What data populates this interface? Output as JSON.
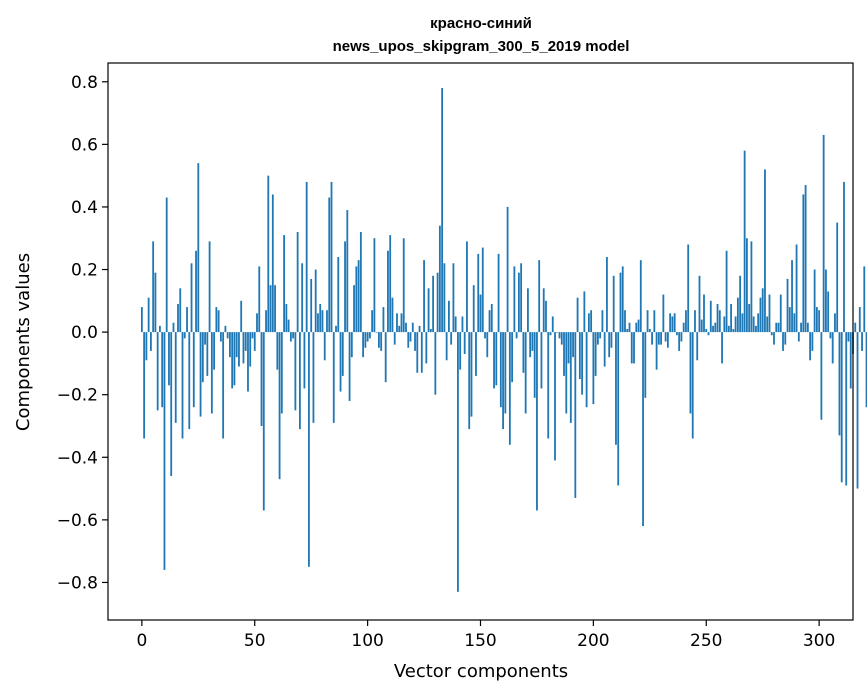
{
  "chart_data": {
    "type": "bar",
    "title": "красно-синий",
    "subtitle": "news_upos_skipgram_300_5_2019 model",
    "xlabel": "Vector components",
    "ylabel": "Components values",
    "xlim": [
      -15,
      315
    ],
    "ylim": [
      -0.92,
      0.86
    ],
    "xticks": [
      0,
      50,
      100,
      150,
      200,
      250,
      300
    ],
    "yticks": [
      -0.8,
      -0.6,
      -0.4,
      -0.2,
      0.0,
      0.2,
      0.4,
      0.6,
      0.8
    ],
    "bar_color": "#1f77b4",
    "grid": false,
    "series": [
      {
        "values": [
          0.08,
          -0.34,
          -0.09,
          0.11,
          -0.06,
          0.29,
          0.19,
          -0.25,
          0.02,
          -0.24,
          -0.76,
          0.43,
          -0.17,
          -0.46,
          0.03,
          -0.29,
          0.09,
          0.14,
          -0.34,
          -0.02,
          0.08,
          -0.31,
          0.22,
          -0.24,
          0.26,
          0.54,
          -0.27,
          -0.16,
          -0.04,
          -0.14,
          0.29,
          -0.26,
          -0.12,
          0.08,
          0.07,
          -0.03,
          -0.34,
          0.02,
          -0.02,
          -0.08,
          -0.18,
          -0.17,
          -0.08,
          -0.11,
          0.1,
          -0.1,
          -0.06,
          -0.19,
          -0.11,
          -0.02,
          -0.06,
          0.06,
          0.21,
          -0.3,
          -0.57,
          0.07,
          0.5,
          0.15,
          0.44,
          0.15,
          -0.12,
          -0.47,
          -0.26,
          0.31,
          0.09,
          0.04,
          -0.03,
          -0.02,
          -0.25,
          0.32,
          -0.31,
          0.22,
          -0.18,
          0.48,
          -0.75,
          0.17,
          -0.29,
          0.2,
          0.06,
          0.09,
          0.07,
          -0.09,
          0.07,
          0.43,
          0.48,
          -0.29,
          0.02,
          0.24,
          -0.19,
          -0.14,
          0.29,
          0.39,
          -0.22,
          -0.08,
          0.15,
          0.21,
          0.23,
          0.32,
          -0.08,
          -0.05,
          -0.03,
          -0.02,
          0.07,
          0.3,
          0.0,
          -0.05,
          -0.06,
          0.08,
          -0.16,
          0.26,
          0.31,
          0.11,
          -0.04,
          0.06,
          0.02,
          0.06,
          0.3,
          0.03,
          -0.05,
          -0.03,
          0.03,
          -0.06,
          -0.13,
          0.02,
          -0.13,
          0.23,
          -0.1,
          0.14,
          0.01,
          0.18,
          -0.2,
          0.19,
          0.34,
          0.78,
          0.22,
          -0.09,
          0.1,
          -0.04,
          0.22,
          0.05,
          -0.83,
          -0.12,
          0.05,
          -0.07,
          0.29,
          -0.31,
          -0.27,
          0.15,
          -0.14,
          0.25,
          0.12,
          0.27,
          -0.02,
          -0.08,
          0.07,
          0.09,
          -0.18,
          -0.17,
          0.25,
          -0.24,
          -0.31,
          -0.26,
          0.4,
          -0.36,
          -0.16,
          0.21,
          -0.02,
          0.19,
          0.22,
          -0.13,
          -0.26,
          0.14,
          -0.08,
          -0.06,
          -0.21,
          -0.57,
          0.23,
          -0.18,
          0.14,
          0.1,
          -0.34,
          -0.01,
          0.05,
          -0.41,
          0.0,
          -0.02,
          -0.04,
          -0.14,
          -0.26,
          -0.1,
          -0.29,
          -0.08,
          -0.53,
          0.11,
          -0.15,
          -0.2,
          0.13,
          -0.24,
          0.06,
          0.07,
          -0.23,
          -0.14,
          -0.04,
          -0.02,
          0.07,
          -0.11,
          0.24,
          -0.08,
          -0.05,
          0.18,
          -0.36,
          -0.49,
          0.19,
          0.21,
          0.07,
          0.01,
          0.03,
          -0.1,
          -0.1,
          0.03,
          0.04,
          0.23,
          -0.62,
          -0.21,
          0.07,
          0.01,
          -0.04,
          0.07,
          -0.12,
          -0.04,
          -0.04,
          0.12,
          -0.03,
          -0.05,
          0.06,
          0.05,
          0.06,
          -0.01,
          -0.06,
          -0.03,
          0.03,
          0.07,
          0.28,
          -0.26,
          -0.34,
          0.07,
          -0.09,
          0.18,
          0.04,
          0.12,
          0.01,
          -0.01,
          0.1,
          0.02,
          0.03,
          0.09,
          0.07,
          -0.1,
          0.05,
          0.26,
          0.02,
          0.09,
          0.01,
          0.05,
          0.11,
          0.18,
          0.06,
          0.58,
          0.3,
          0.09,
          0.29,
          0.05,
          0.02,
          0.06,
          0.11,
          0.14,
          0.52,
          0.05,
          0.12,
          -0.01,
          -0.04,
          0.03,
          0.03,
          0.12,
          -0.06,
          -0.04,
          0.17,
          0.08,
          0.23,
          0.06,
          0.28,
          -0.03,
          0.03,
          0.44,
          0.47,
          0.03,
          -0.09,
          -0.06,
          0.2,
          0.08,
          0.07,
          -0.28,
          0.63,
          0.2,
          0.13,
          -0.02,
          -0.1,
          0.06,
          0.35,
          -0.33,
          -0.48,
          0.48,
          -0.49,
          -0.03,
          -0.18,
          -0.07,
          0.03,
          -0.5,
          0.08,
          -0.06,
          0.21,
          -0.24,
          0.04
        ]
      }
    ]
  }
}
